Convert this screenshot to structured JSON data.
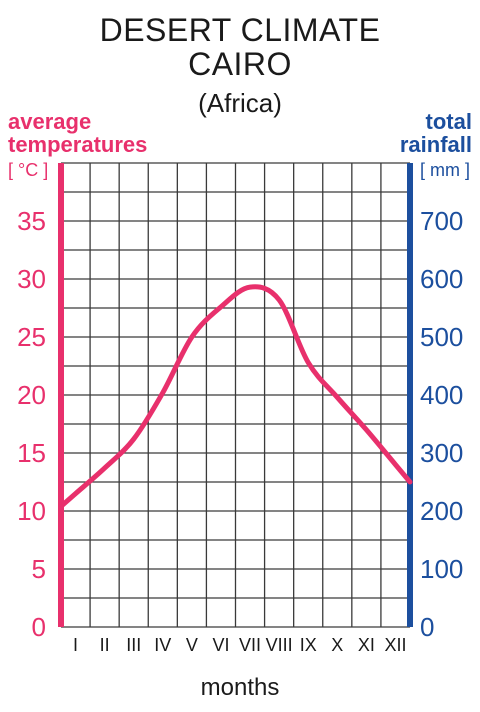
{
  "header": {
    "title_line1": "DESERT CLIMATE",
    "title_line2": "CAIRO",
    "subtitle": "(Africa)"
  },
  "axes": {
    "left_label_line1": "average",
    "left_label_line2": "temperatures",
    "left_unit": "[ °C ]",
    "right_label_line1": "total",
    "right_label_line2": "rainfall",
    "right_unit": "[ mm ]",
    "x_label": "months"
  },
  "colors": {
    "temperature": "#e8306c",
    "rainfall": "#1c4f9e",
    "grid": "#3a3a3a"
  },
  "chart_data": {
    "type": "line",
    "categories": [
      "I",
      "II",
      "III",
      "IV",
      "V",
      "VI",
      "VII",
      "VIII",
      "IX",
      "X",
      "XI",
      "XII"
    ],
    "series": [
      {
        "axis": "left",
        "values": [
          11.5,
          13.7,
          16.2,
          20.2,
          25.0,
          27.6,
          29.3,
          28.2,
          22.8,
          19.8,
          17.0,
          14.0
        ]
      }
    ],
    "y_left_ticks": [
      0,
      5,
      10,
      15,
      20,
      25,
      30,
      35
    ],
    "y_left_range": [
      0,
      40
    ],
    "y_right_ticks": [
      0,
      100,
      200,
      300,
      400,
      500,
      600,
      700
    ],
    "y_right_range": [
      0,
      800
    ],
    "grid": true
  }
}
